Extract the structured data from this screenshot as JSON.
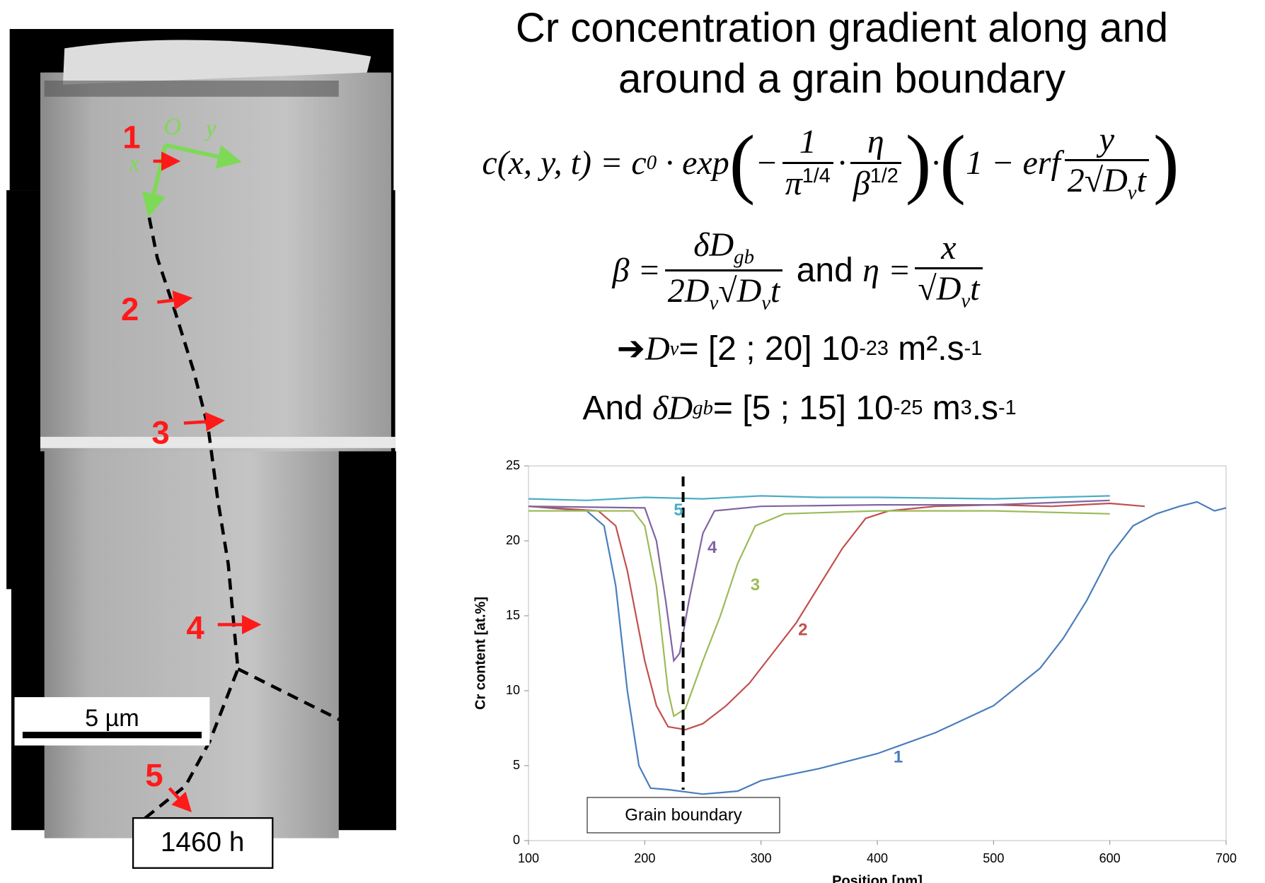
{
  "slide": {
    "title_lines": [
      "Cr concentration gradient along and",
      "around a grain boundary"
    ]
  },
  "micrograph": {
    "markers": [
      "1",
      "2",
      "3",
      "4",
      "5"
    ],
    "axes": [
      "O",
      "x",
      "y"
    ],
    "scale_bar": "5 µm",
    "time": "1460 h"
  },
  "equations": [
    [
      "c(x, y, t) = c",
      {
        "sub": "0"
      },
      " · exp",
      "(",
      "−",
      {
        "num": "1",
        "den": [
          "π",
          {
            "sup": "1/4"
          }
        ]
      },
      "·",
      {
        "num": "η",
        "den": [
          "β",
          {
            "sup": "1/2"
          }
        ]
      },
      ")",
      "·",
      "(",
      "1 − erf",
      {
        "num": "y",
        "den": [
          "2√",
          "D",
          {
            "sub": "v"
          },
          "t"
        ]
      },
      ")"
    ],
    [
      "β =",
      {
        "num": [
          "δD",
          {
            "sub": "gb"
          }
        ],
        "den": [
          "2D",
          {
            "sub": "v"
          },
          "√D",
          {
            "sub": "v"
          },
          "t"
        ]
      },
      {
        "text": " and "
      },
      "η =",
      {
        "num": "x",
        "den": [
          "√D",
          {
            "sub": "v"
          },
          "t"
        ]
      }
    ],
    [
      {
        "text": "➔"
      },
      "D",
      {
        "sub": "v"
      },
      {
        "text": "= [2 ; 20] 10"
      },
      {
        "sup": "-23"
      },
      {
        "text": " m².s"
      },
      {
        "sup": "-1"
      }
    ],
    [
      {
        "text": "And "
      },
      "δD",
      {
        "sub": "gb"
      },
      {
        "text": "= [5 ; 15] 10"
      },
      {
        "sup": "-25"
      },
      {
        "text": " m"
      },
      {
        "sup": "3"
      },
      {
        "text": ".s"
      },
      {
        "sup": "-1"
      }
    ]
  ],
  "chart_data": {
    "type": "line",
    "x_label": "Position [nm]",
    "y_label": "Cr content [at.%]",
    "xlim": [
      100,
      700
    ],
    "xticks": [
      100,
      200,
      300,
      400,
      500,
      600,
      700
    ],
    "ylim": [
      0,
      25
    ],
    "yticks": [
      0,
      5,
      10,
      15,
      20,
      25
    ],
    "grain_boundary_x": 233,
    "annotation": "Grain boundary",
    "series": [
      {
        "name": "1",
        "color": "#4a7ebb",
        "x": [
          100,
          150,
          165,
          175,
          185,
          195,
          205,
          220,
          250,
          280,
          300,
          350,
          400,
          450,
          500,
          540,
          560,
          580,
          600,
          620,
          640,
          660,
          675,
          690,
          700
        ],
        "values": [
          22.3,
          22,
          21,
          17,
          10,
          5,
          3.5,
          3.4,
          3.1,
          3.3,
          4,
          4.8,
          5.8,
          7.2,
          9,
          11.5,
          13.5,
          16,
          19,
          21,
          21.8,
          22.3,
          22.6,
          22,
          22.2
        ]
      },
      {
        "name": "2",
        "color": "#c0504d",
        "x": [
          100,
          160,
          175,
          185,
          200,
          210,
          220,
          235,
          250,
          270,
          290,
          310,
          330,
          350,
          370,
          390,
          410,
          450,
          500,
          550,
          600,
          630
        ],
        "values": [
          22.3,
          22,
          21,
          18,
          12,
          9,
          7.6,
          7.4,
          7.8,
          9,
          10.5,
          12.5,
          14.5,
          17,
          19.5,
          21.5,
          22,
          22.3,
          22.4,
          22.3,
          22.5,
          22.3
        ]
      },
      {
        "name": "3",
        "color": "#9bbb59",
        "x": [
          100,
          190,
          200,
          210,
          220,
          225,
          235,
          250,
          265,
          280,
          295,
          320,
          400,
          500,
          600
        ],
        "values": [
          22,
          22,
          21,
          17,
          10,
          8.3,
          8.8,
          12,
          15,
          18.5,
          21,
          21.8,
          22,
          22,
          21.8
        ]
      },
      {
        "name": "4",
        "color": "#8064a2",
        "x": [
          100,
          200,
          210,
          218,
          225,
          230,
          238,
          250,
          260,
          300,
          400,
          500,
          600
        ],
        "values": [
          22.3,
          22.2,
          20,
          16,
          12,
          12.5,
          16,
          20.5,
          22,
          22.3,
          22.4,
          22.4,
          22.7
        ]
      },
      {
        "name": "5",
        "color": "#4bacc6",
        "x": [
          100,
          150,
          200,
          250,
          300,
          350,
          400,
          500,
          600
        ],
        "values": [
          22.8,
          22.7,
          22.9,
          22.8,
          23,
          22.9,
          22.9,
          22.8,
          23
        ]
      }
    ]
  }
}
